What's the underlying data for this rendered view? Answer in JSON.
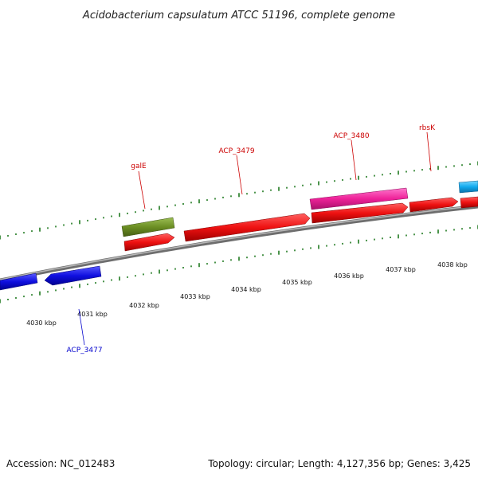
{
  "title": "Acidobacterium capsulatum ATCC 51196, complete genome",
  "footer": {
    "accession": "Accession: NC_012483",
    "summary": "Topology: circular; Length: 4,127,356 bp; Genes: 3,425"
  },
  "colors": {
    "backbone": "#8a8a8a",
    "ticks": "#1f7a1f",
    "label_red": "#cc0000",
    "label_blue": "#0000cc"
  },
  "kbp_ticks": [
    {
      "kbp": 4030,
      "label": "4030 kbp"
    },
    {
      "kbp": 4031,
      "label": "4031 kbp"
    },
    {
      "kbp": 4032,
      "label": "4032 kbp"
    },
    {
      "kbp": 4033,
      "label": "4033 kbp"
    },
    {
      "kbp": 4034,
      "label": "4034 kbp"
    },
    {
      "kbp": 4035,
      "label": "4035 kbp"
    },
    {
      "kbp": 4036,
      "label": "4036 kbp"
    },
    {
      "kbp": 4037,
      "label": "4037 kbp"
    },
    {
      "kbp": 4038,
      "label": "4038 kbp"
    }
  ],
  "genes": [
    {
      "id": "left-blue-a",
      "label": "",
      "color": "#1010e0",
      "strand": "minus",
      "lane": "lower"
    },
    {
      "id": "ACP_3477",
      "label": "ACP_3477",
      "color": "#1010e0",
      "strand": "minus",
      "lane": "lower"
    },
    {
      "id": "galE",
      "label": "galE",
      "color": "#6b8e23",
      "strand": "plus",
      "lane": "upper-outer"
    },
    {
      "id": "galE-red",
      "label": "",
      "color": "#ee1111",
      "strand": "plus",
      "lane": "upper-inner"
    },
    {
      "id": "ACP_3479",
      "label": "ACP_3479",
      "color": "#ee1111",
      "strand": "plus",
      "lane": "upper-inner"
    },
    {
      "id": "ACP_3480",
      "label": "ACP_3480",
      "color": "#ee2299",
      "strand": "plus",
      "lane": "upper-outer"
    },
    {
      "id": "red-4036",
      "label": "",
      "color": "#ee1111",
      "strand": "plus",
      "lane": "upper-inner"
    },
    {
      "id": "rbsK",
      "label": "rbsK",
      "color": "#ee1111",
      "strand": "plus",
      "lane": "upper-inner"
    },
    {
      "id": "right-red",
      "label": "",
      "color": "#ee1111",
      "strand": "plus",
      "lane": "upper-inner"
    },
    {
      "id": "right-cyan",
      "label": "",
      "color": "#11aaee",
      "strand": "plus",
      "lane": "upper-outer"
    }
  ]
}
